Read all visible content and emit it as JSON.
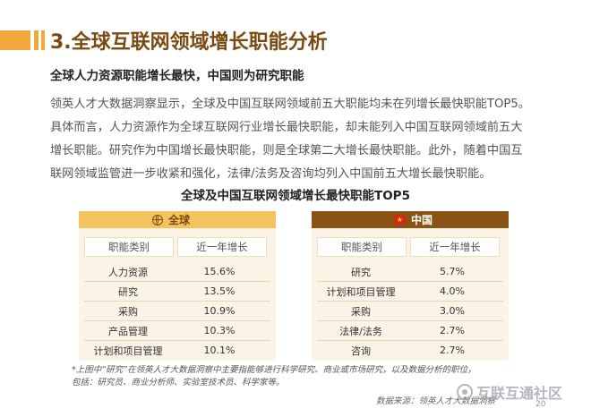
{
  "header": {
    "section_title": "3.全球互联网领域增长职能分析",
    "subtitle": "全球人力资源职能增长最快，中国则为研究职能"
  },
  "body": {
    "lines": [
      "领英人才大数据洞察显示，全球及中国互联网领域前五大职能均未在列增长最快职能TOP5。",
      "具体而言，人力资源作为全球互联网行业增长最快职能，却未能列入中国互联网领域前五大",
      "增长职能。研究作为中国增长最快职能，则是全球第二大增长最快职能。此外，随着中国互",
      "联网领域监管进一步收紧和强化，法律/法务及咨询均列入中国前五大增长最快职能。"
    ]
  },
  "table_title": "全球及中国互联网领域增长最快职能TOP5",
  "global": {
    "label": "全球",
    "icon": "globe-icon",
    "col_function": "职能类别",
    "col_growth": "近一年增长",
    "rows": [
      {
        "function": "人力资源",
        "growth": "15.6%"
      },
      {
        "function": "研究",
        "growth": "13.5%"
      },
      {
        "function": "采购",
        "growth": "10.9%"
      },
      {
        "function": "产品管理",
        "growth": "10.3%"
      },
      {
        "function": "计划和项目管理",
        "growth": "10.1%"
      }
    ]
  },
  "china": {
    "label": "中国",
    "icon": "china-flag-icon",
    "col_function": "职能类别",
    "col_growth": "近一年增长",
    "rows": [
      {
        "function": "研究",
        "growth": "5.7%"
      },
      {
        "function": "计划和项目管理",
        "growth": "4.0%"
      },
      {
        "function": "采购",
        "growth": "3.0%"
      },
      {
        "function": "法律/法务",
        "growth": "2.7%"
      },
      {
        "function": "咨询",
        "growth": "2.7%"
      }
    ]
  },
  "footnote": {
    "line1": "*上图中“研究”在领英人才大数据洞察中主要指能够进行科学研究、商业或市场研究，以及数据分析的职位，",
    "line2": "包括：研究员、商业分析师、实验室技术员、科学家等。"
  },
  "source": "数据来源：领英人才大数据洞察",
  "watermark": "互联互通社区",
  "page_number": "20",
  "colors": {
    "accent_orange": "#f2a93b",
    "brown": "#7b4a12",
    "global_header": "#f5c35e",
    "china_header": "#8a5314",
    "table_bg": "#fbf3e5"
  }
}
